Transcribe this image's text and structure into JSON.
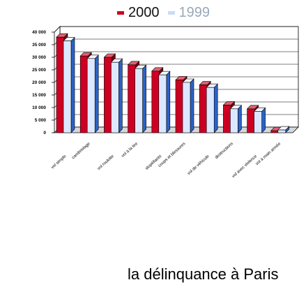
{
  "chart_data": {
    "type": "bar",
    "title": "",
    "caption": "la délinquance à Paris",
    "xlabel": "",
    "ylabel": "",
    "ylim": [
      0,
      40000
    ],
    "yticks": [
      "0",
      "5 000",
      "10 000",
      "15 000",
      "20 000",
      "25 000",
      "30 000",
      "35 000",
      "40 000"
    ],
    "ytick_values": [
      0,
      5000,
      10000,
      15000,
      20000,
      25000,
      30000,
      35000,
      40000
    ],
    "categories": [
      "vol simple",
      "cambriolage",
      "vol roulotte",
      "vol à la tire",
      "stupéfiants",
      "coups et blessures",
      "vol de véhicule",
      "destructions",
      "vol avec violence",
      "vol à main armée"
    ],
    "series": [
      {
        "name": "2000",
        "color": "#cc0022",
        "values": [
          38000,
          30500,
          30000,
          27000,
          24500,
          21000,
          19000,
          11000,
          9500,
          800
        ]
      },
      {
        "name": "1999",
        "color": "#dce8ff",
        "values": [
          36500,
          29500,
          28000,
          25500,
          23000,
          20000,
          18000,
          9500,
          8500,
          1100
        ]
      }
    ],
    "grid": true,
    "legend_position": "top"
  }
}
